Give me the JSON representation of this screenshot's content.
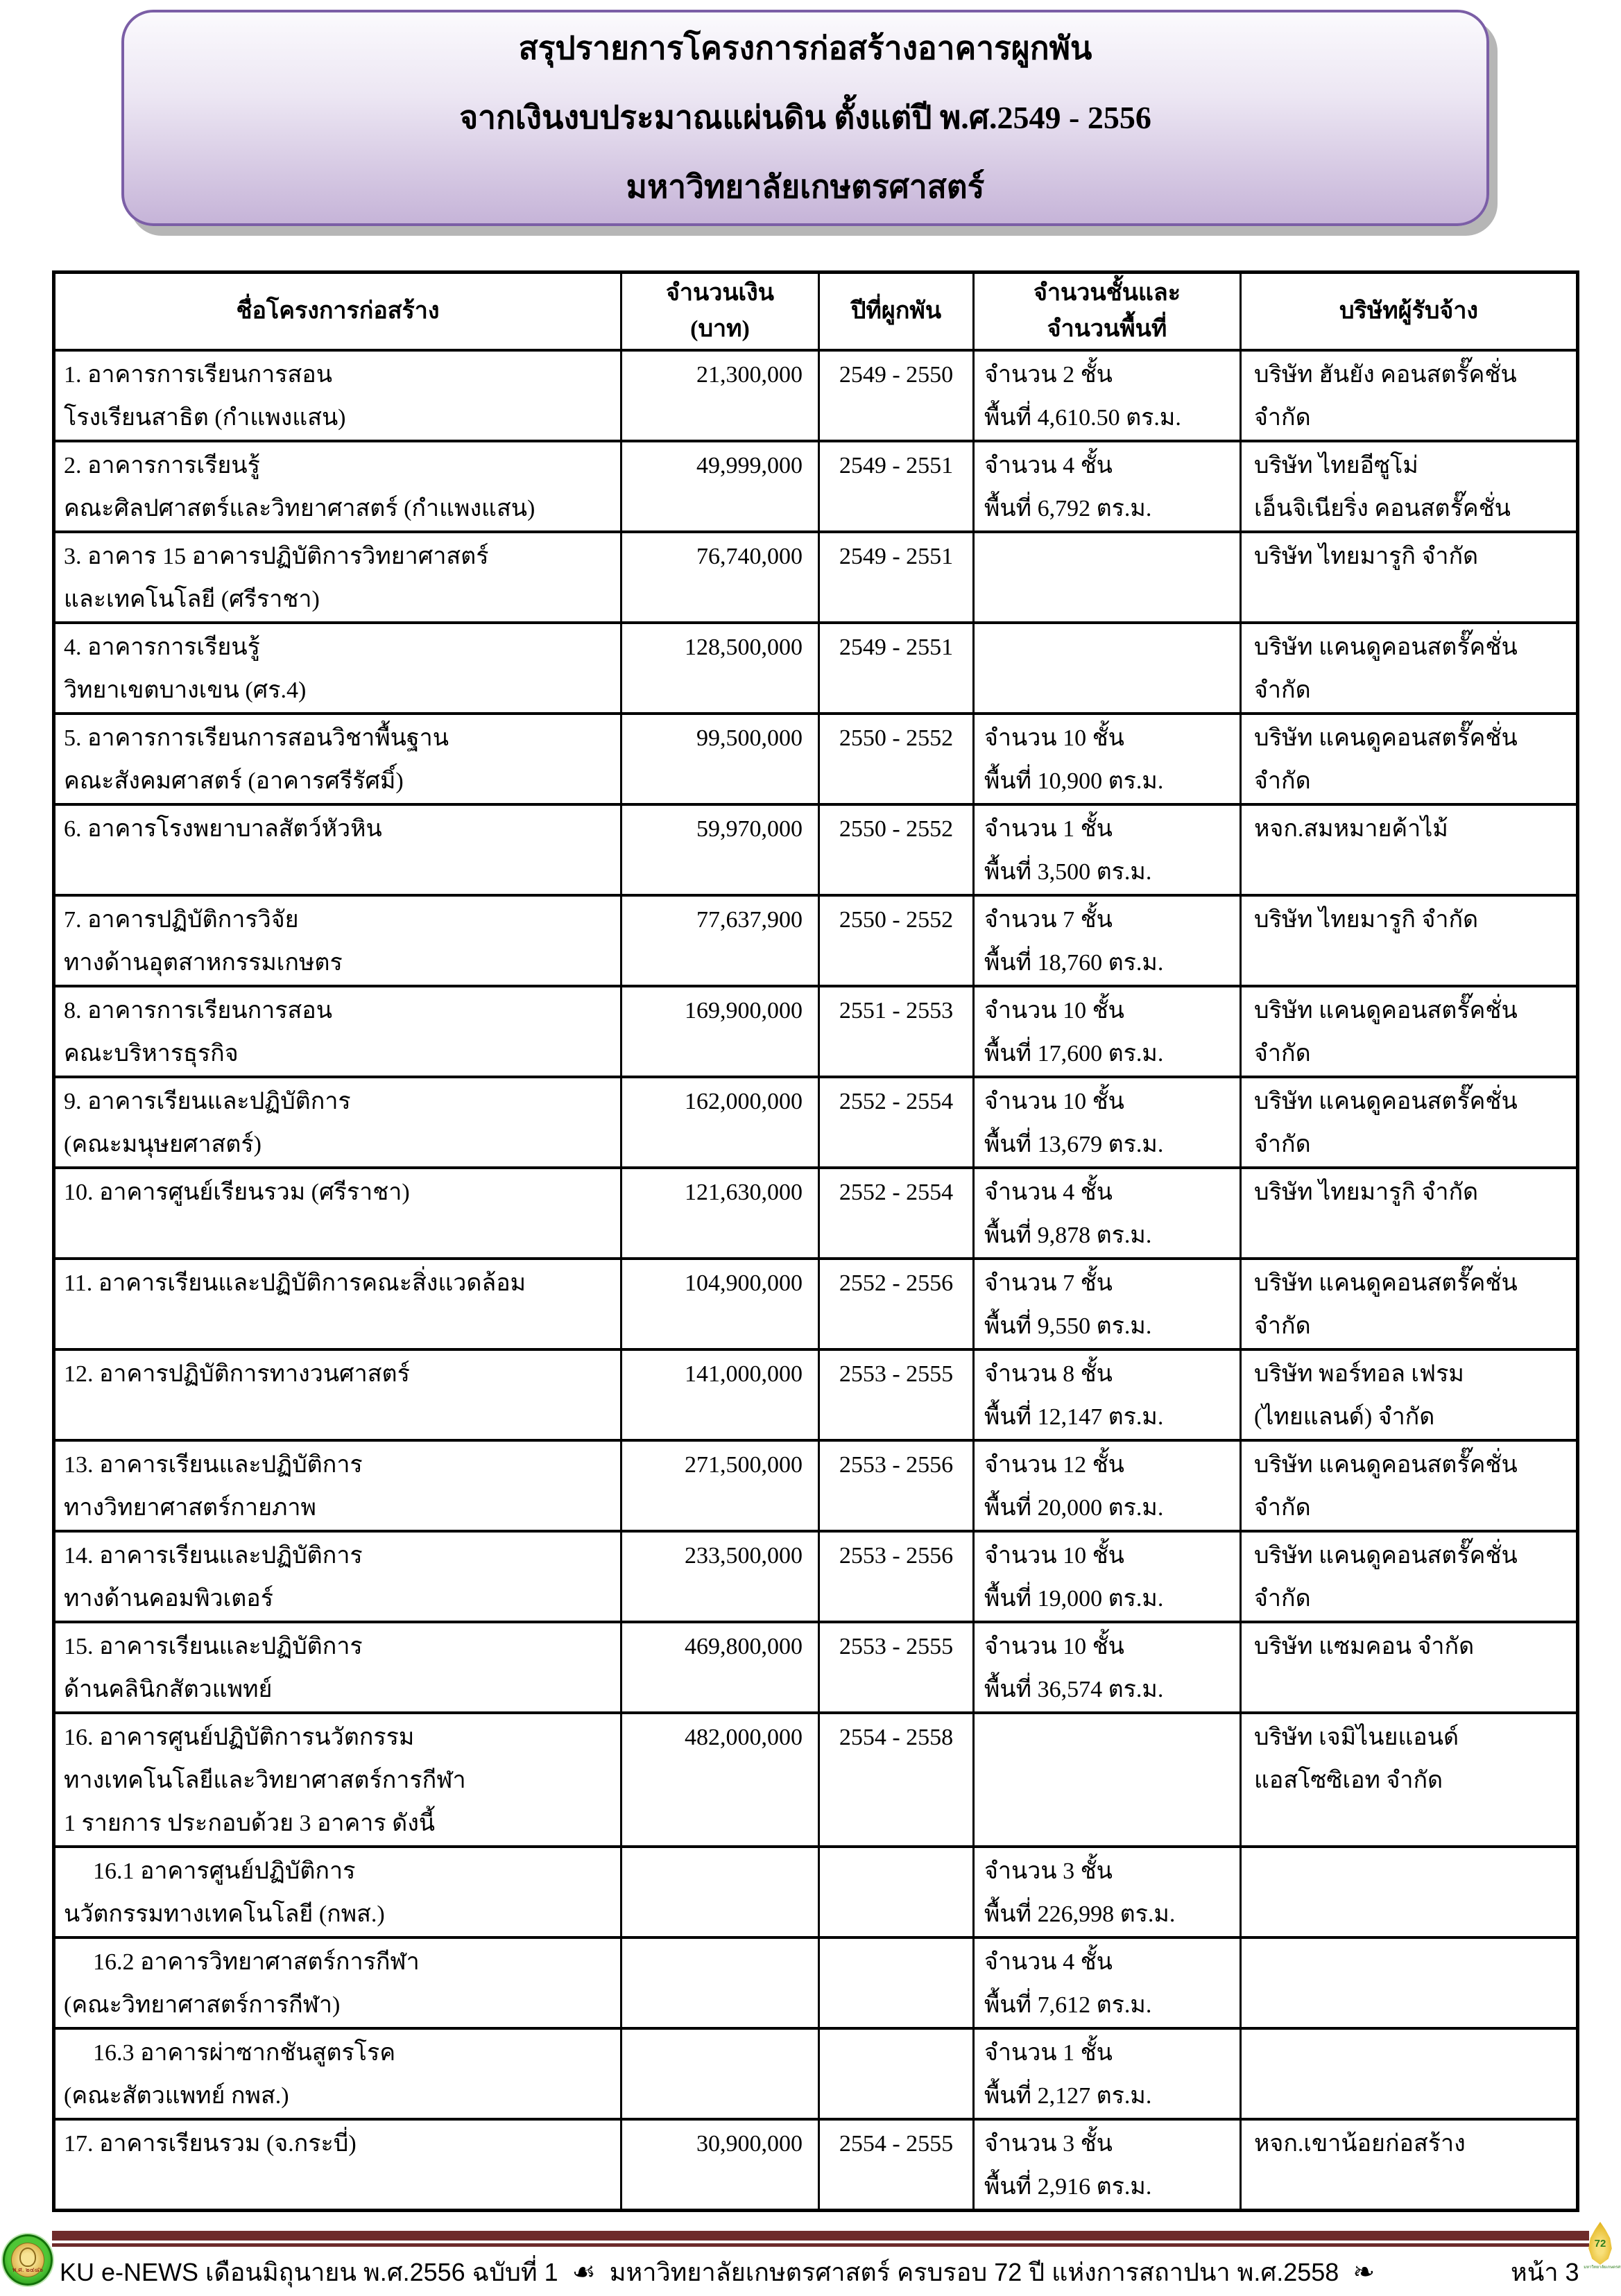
{
  "title_box": {
    "lines": [
      "สรุปรายการโครงการก่อสร้างอาคารผูกพัน",
      "จากเงินงบประมาณแผ่นดิน ตั้งแต่ปี พ.ศ.2549 - 2556",
      "มหาวิทยาลัยเกษตรศาสตร์"
    ]
  },
  "table": {
    "headers": {
      "project": "ชื่อโครงการก่อสร้าง",
      "amount_line1": "จำนวนเงิน",
      "amount_line2": "(บาท)",
      "years": "ปีที่ผูกพัน",
      "floors_line1": "จำนวนชั้นและ",
      "floors_line2": "จำนวนพื้นที่",
      "company": "บริษัทผู้รับจ้าง"
    },
    "rows": [
      {
        "name_lines": [
          "1. อาคารการเรียนการสอน",
          "โรงเรียนสาธิต (กำแพงแสน)"
        ],
        "amount": "21,300,000",
        "years": "2549 - 2550",
        "detail_lines": [
          "จำนวน  2  ชั้น",
          "พื้นที่  4,610.50  ตร.ม."
        ],
        "company_lines": [
          "บริษัท ฮันยัง คอนสตรั๊คชั่น จำกัด"
        ]
      },
      {
        "name_lines": [
          "2. อาคารการเรียนรู้",
          "คณะศิลปศาสตร์และวิทยาศาสตร์ (กำแพงแสน)"
        ],
        "amount": "49,999,000",
        "years": "2549 - 2551",
        "detail_lines": [
          "จำนวน  4  ชั้น",
          "พื้นที่  6,792  ตร.ม."
        ],
        "company_lines": [
          "บริษัท ไทยอีซูโม่",
          "เอ็นจิเนียริ่ง คอนสตรั๊คชั่น"
        ]
      },
      {
        "name_lines": [
          "3. อาคาร 15 อาคารปฏิบัติการวิทยาศาสตร์",
          "และเทคโนโลยี (ศรีราชา)"
        ],
        "amount": "76,740,000",
        "years": "2549 - 2551",
        "detail_lines": [],
        "company_lines": [
          "บริษัท ไทยมารูกิ จำกัด"
        ]
      },
      {
        "name_lines": [
          "4. อาคารการเรียนรู้",
          "วิทยาเขตบางเขน (ศร.4)"
        ],
        "amount": "128,500,000",
        "years": "2549 - 2551",
        "detail_lines": [],
        "company_lines": [
          "บริษัท แคนดูคอนสตรั๊คชั่น จำกัด"
        ]
      },
      {
        "name_lines": [
          "5. อาคารการเรียนการสอนวิชาพื้นฐาน",
          "คณะสังคมศาสตร์ (อาคารศรีรัศมิ์)"
        ],
        "amount": "99,500,000",
        "years": "2550 - 2552",
        "detail_lines": [
          "จำนวน 10 ชั้น",
          "พื้นที่  10,900 ตร.ม."
        ],
        "company_lines": [
          "บริษัท แคนดูคอนสตรั๊คชั่น จำกัด"
        ]
      },
      {
        "name_lines": [
          "6. อาคารโรงพยาบาลสัตว์หัวหิน"
        ],
        "amount": "59,970,000",
        "years": "2550 - 2552",
        "detail_lines": [
          "จำนวน 1 ชั้น",
          "พื้นที่  3,500 ตร.ม."
        ],
        "company_lines": [
          "หจก.สมหมายค้าไม้"
        ]
      },
      {
        "name_lines": [
          "7. อาคารปฏิบัติการวิจัย",
          "ทางด้านอุตสาหกรรมเกษตร"
        ],
        "amount": "77,637,900",
        "years": "2550 - 2552",
        "detail_lines": [
          "จำนวน 7 ชั้น",
          "พื้นที่ 18,760 ตร.ม."
        ],
        "company_lines": [
          "บริษัท ไทยมารูกิ จำกัด"
        ]
      },
      {
        "name_lines": [
          "8. อาคารการเรียนการสอน",
          "คณะบริหารธุรกิจ"
        ],
        "amount": "169,900,000",
        "years": "2551 - 2553",
        "detail_lines": [
          "จำนวน 10  ชั้น",
          "พื้นที่ 17,600 ตร.ม."
        ],
        "company_lines": [
          "บริษัท แคนดูคอนสตรั๊คชั่น จำกัด"
        ]
      },
      {
        "name_lines": [
          "9. อาคารเรียนและปฏิบัติการ",
          "(คณะมนุษยศาสตร์)"
        ],
        "amount": "162,000,000",
        "years": "2552 - 2554",
        "detail_lines": [
          "จำนวน 10 ชั้น",
          "พื้นที่  13,679 ตร.ม."
        ],
        "company_lines": [
          "บริษัท แคนดูคอนสตรั๊คชั่น จำกัด"
        ]
      },
      {
        "name_lines": [
          "10. อาคารศูนย์เรียนรวม (ศรีราชา)"
        ],
        "amount": "121,630,000",
        "years": "2552 - 2554",
        "detail_lines": [
          "จำนวน  4  ชั้น",
          "พื้นที่ 9,878 ตร.ม."
        ],
        "company_lines": [
          "บริษัท ไทยมารูกิ จำกัด"
        ]
      },
      {
        "name_lines": [
          "11. อาคารเรียนและปฏิบัติการคณะสิ่งแวดล้อม"
        ],
        "amount": "104,900,000",
        "years": "2552 - 2556",
        "detail_lines": [
          "จำนวน  7  ชั้น",
          "พื้นที่ 9,550 ตร.ม."
        ],
        "company_lines": [
          "บริษัท แคนดูคอนสตรั๊คชั่น จำกัด"
        ]
      },
      {
        "name_lines": [
          "12. อาคารปฏิบัติการทางวนศาสตร์"
        ],
        "amount": "141,000,000",
        "years": "2553 - 2555",
        "detail_lines": [
          "จำนวน  8  ชั้น",
          "พื้นที่ 12,147 ตร.ม."
        ],
        "company_lines": [
          "บริษัท พอร์ทอล เฟรม",
          "(ไทยแลนด์) จำกัด"
        ]
      },
      {
        "name_lines": [
          "13. อาคารเรียนและปฏิบัติการ",
          "ทางวิทยาศาสตร์กายภาพ"
        ],
        "amount": "271,500,000",
        "years": "2553 - 2556",
        "detail_lines": [
          "จำนวน 12 ชั้น",
          "พื้นที่ 20,000 ตร.ม."
        ],
        "company_lines": [
          "บริษัท แคนดูคอนสตรั๊คชั่น จำกัด"
        ]
      },
      {
        "name_lines": [
          "14. อาคารเรียนและปฏิบัติการ",
          "ทางด้านคอมพิวเตอร์"
        ],
        "amount": "233,500,000",
        "years": "2553 - 2556",
        "detail_lines": [
          "จำนวน 10 ชั้น",
          "พื้นที่ 19,000 ตร.ม."
        ],
        "company_lines": [
          "บริษัท แคนดูคอนสตรั๊คชั่น จำกัด"
        ]
      },
      {
        "name_lines": [
          "15. อาคารเรียนและปฏิบัติการ",
          "ด้านคลินิกสัตวแพทย์"
        ],
        "amount": "469,800,000",
        "years": "2553 - 2555",
        "detail_lines": [
          "จำนวน 10 ชั้น",
          "พื้นที่ 36,574 ตร.ม."
        ],
        "company_lines": [
          "บริษัท แซมคอน จำกัด"
        ]
      },
      {
        "name_lines": [
          "16. อาคารศูนย์ปฏิบัติการนวัตกรรม",
          "ทางเทคโนโลยีและวิทยาศาสตร์การกีฬา",
          "1 รายการ ประกอบด้วย 3 อาคาร ดังนี้"
        ],
        "amount": "482,000,000",
        "years": "2554 - 2558",
        "detail_lines": [],
        "company_lines": [
          "บริษัท เจมิไนยแอนด์",
          "แอสโซซิเอท จำกัด"
        ]
      },
      {
        "name_lines": [
          "16.1 อาคารศูนย์ปฏิบัติการ",
          "นวัตกรรมทางเทคโนโลยี (กพส.)"
        ],
        "amount": "",
        "years": "",
        "detail_lines": [
          "จำนวน  3 ชั้น",
          "พื้นที่ 226,998 ตร.ม."
        ],
        "company_lines": [],
        "indent": true
      },
      {
        "name_lines": [
          "16.2 อาคารวิทยาศาสตร์การกีฬา",
          "(คณะวิทยาศาสตร์การกีฬา)"
        ],
        "amount": "",
        "years": "",
        "detail_lines": [
          "จำนวน  4 ชั้น",
          "พื้นที่ 7,612 ตร.ม."
        ],
        "company_lines": [],
        "indent": true
      },
      {
        "name_lines": [
          "16.3 อาคารผ่าซากชันสูตรโรค",
          "(คณะสัตวแพทย์ กพส.)"
        ],
        "amount": "",
        "years": "",
        "detail_lines": [
          "จำนวน  1 ชั้น",
          "พื้นที่ 2,127 ตร.ม."
        ],
        "company_lines": [],
        "indent": true
      },
      {
        "name_lines": [
          "17. อาคารเรียนรวม (จ.กระบี่)"
        ],
        "amount": "30,900,000",
        "years": "2554 - 2555",
        "detail_lines": [
          "จำนวน  3 ชั้น",
          "พื้นที่ 2,916 ตร.ม."
        ],
        "company_lines": [
          "หจก.เขาน้อยก่อสร้าง"
        ]
      }
    ]
  },
  "footer": {
    "text_before": "KU e-NEWS เดือนมิถุนายน พ.ศ.2556 ฉบับที่ 1",
    "ornament_left": "☙",
    "text_after": "มหาวิทยาลัยเกษตรศาสตร์ ครบรอบ 72 ปี แห่งการสถาปนา พ.ศ.2558",
    "ornament_right": "❧",
    "page_label": "หน้า 3",
    "seal_caption": "พ.ศ. ๒๔๘๖",
    "anniversary_number": "72",
    "anniversary_caption": "มหาวิทยาลัยเกษตรศาสตร์"
  }
}
